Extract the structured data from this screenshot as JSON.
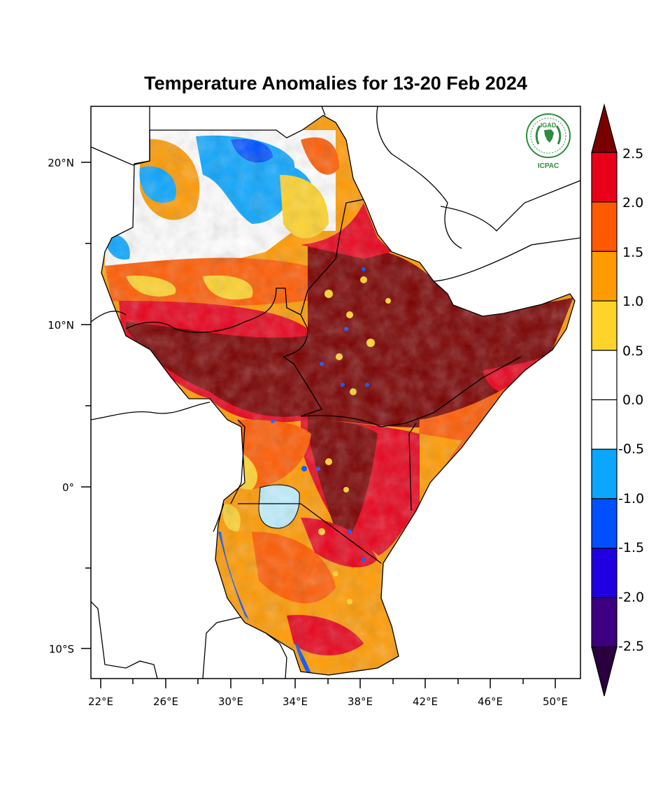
{
  "title": "Temperature Anomalies for 13-20 Feb 2024",
  "logo": {
    "top_text": "IGAD",
    "bottom_text": "ICPAC",
    "color": "#2e8b3c"
  },
  "axes": {
    "lat_labels": [
      "20°N",
      "10°N",
      "0°",
      "10°S"
    ],
    "lon_labels": [
      "22°E",
      "26°E",
      "30°E",
      "34°E",
      "38°E",
      "42°E",
      "46°E",
      "50°E"
    ]
  },
  "colorbar": {
    "labels": [
      "2.5",
      "2.0",
      "1.5",
      "1.0",
      "0.5",
      "0.0",
      "-0.5",
      "-1.0",
      "-1.5",
      "-2.0",
      "-2.5"
    ],
    "colors": [
      "#7a0000",
      "#e8001a",
      "#ff5a00",
      "#ff9a00",
      "#ffd32a",
      "#ffffff",
      "#ffffff",
      "#0aa6ff",
      "#0050ff",
      "#2000e0",
      "#3d0080",
      "#2a0040"
    ]
  },
  "chart_data": {
    "type": "heatmap",
    "title": "Temperature Anomalies for 13-20 Feb 2024",
    "lon_range": [
      21,
      51.5
    ],
    "lat_range": [
      -12,
      23
    ],
    "legend_placement": "right",
    "levels": [
      -2.5,
      -2.0,
      -1.5,
      -1.0,
      -0.5,
      0.0,
      0.5,
      1.0,
      1.5,
      2.0,
      2.5
    ]
  }
}
